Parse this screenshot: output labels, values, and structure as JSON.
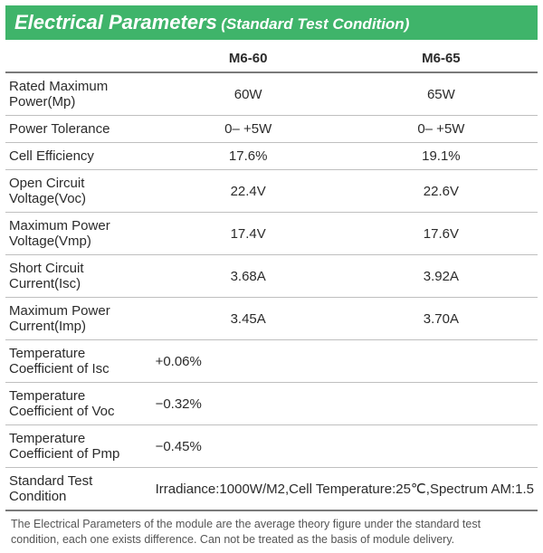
{
  "colors": {
    "title_bg": "#3fb46a",
    "title_text": "#ffffff",
    "header_border": "#7a7a7a",
    "row_border": "#bfbfbf",
    "text": "#2b2b2b",
    "footnote": "#555555"
  },
  "title": {
    "main": "Electrical Parameters",
    "sub": "(Standard Test Condition)"
  },
  "columns": {
    "a": "M6-60",
    "b": "M6-65"
  },
  "rows": [
    {
      "label": "Rated Maximum Power(Mp)",
      "a": "60W",
      "b": "65W"
    },
    {
      "label": "Power Tolerance",
      "a": "0– +5W",
      "b": "0– +5W"
    },
    {
      "label": "Cell Efficiency",
      "a": "17.6%",
      "b": "19.1%"
    },
    {
      "label": "Open Circuit Voltage(Voc)",
      "a": "22.4V",
      "b": "22.6V"
    },
    {
      "label": "Maximum Power Voltage(Vmp)",
      "a": "17.4V",
      "b": "17.6V"
    },
    {
      "label": "Short Circuit Current(Isc)",
      "a": "3.68A",
      "b": "3.92A"
    },
    {
      "label": "Maximum Power Current(Imp)",
      "a": "3.45A",
      "b": "3.70A"
    }
  ],
  "merged_rows": [
    {
      "label": "Temperature Coefficient of Isc",
      "value": "+0.06%"
    },
    {
      "label": "Temperature Coefficient of Voc",
      "value": "−0.32%"
    },
    {
      "label": "Temperature Coefficient of Pmp",
      "value": "−0.45%"
    }
  ],
  "stc": {
    "label": "Standard Test Condition",
    "value": "Irradiance:1000W/M2,Cell Temperature:25℃,Spectrum AM:1.5"
  },
  "footnote": "The Electrical Parameters of the module are the average theory figure under the standard test condition, each one exists difference. Can not be treated as the basis of module delivery."
}
